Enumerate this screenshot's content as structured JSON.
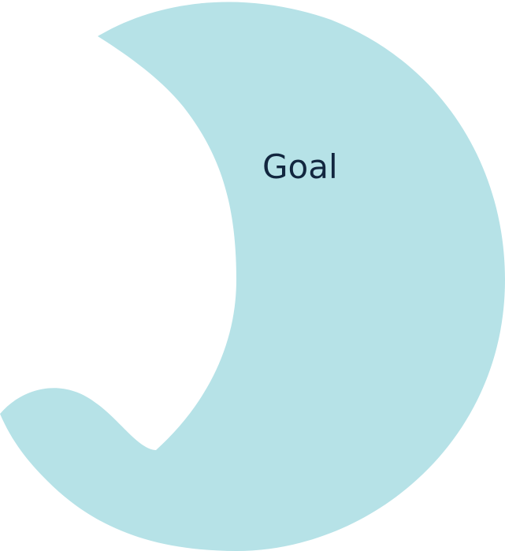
{
  "shape": {
    "label": "Goal",
    "fill_color": "#b6e2e7",
    "text_color": "#12263f"
  }
}
